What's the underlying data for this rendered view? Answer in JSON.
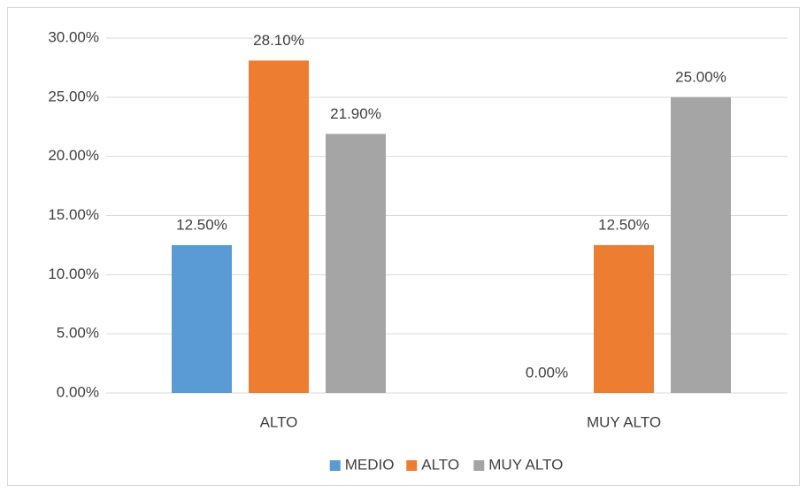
{
  "chart_data": {
    "type": "bar",
    "categories": [
      "ALTO",
      "MUY ALTO"
    ],
    "series": [
      {
        "name": "MEDIO",
        "color": "#5b9bd5",
        "values": [
          12.5,
          0
        ],
        "value_labels": [
          "12.50%",
          "0.00%"
        ]
      },
      {
        "name": "ALTO",
        "color": "#ed7d31",
        "values": [
          28.1,
          12.5
        ],
        "value_labels": [
          "28.10%",
          "12.50%"
        ]
      },
      {
        "name": "MUY ALTO",
        "color": "#a5a5a5",
        "values": [
          21.9,
          25
        ],
        "value_labels": [
          "21.90%",
          "25.00%"
        ]
      }
    ],
    "ylim": [
      0,
      30
    ],
    "yticks": [
      {
        "value": 0,
        "label": "0.00%"
      },
      {
        "value": 5,
        "label": "5.00%"
      },
      {
        "value": 10,
        "label": "10.00%"
      },
      {
        "value": 15,
        "label": "15.00%"
      },
      {
        "value": 20,
        "label": "20.00%"
      },
      {
        "value": 25,
        "label": "25.00%"
      },
      {
        "value": 30,
        "label": "30.00%"
      }
    ],
    "grid": true,
    "legend": "bottom"
  }
}
